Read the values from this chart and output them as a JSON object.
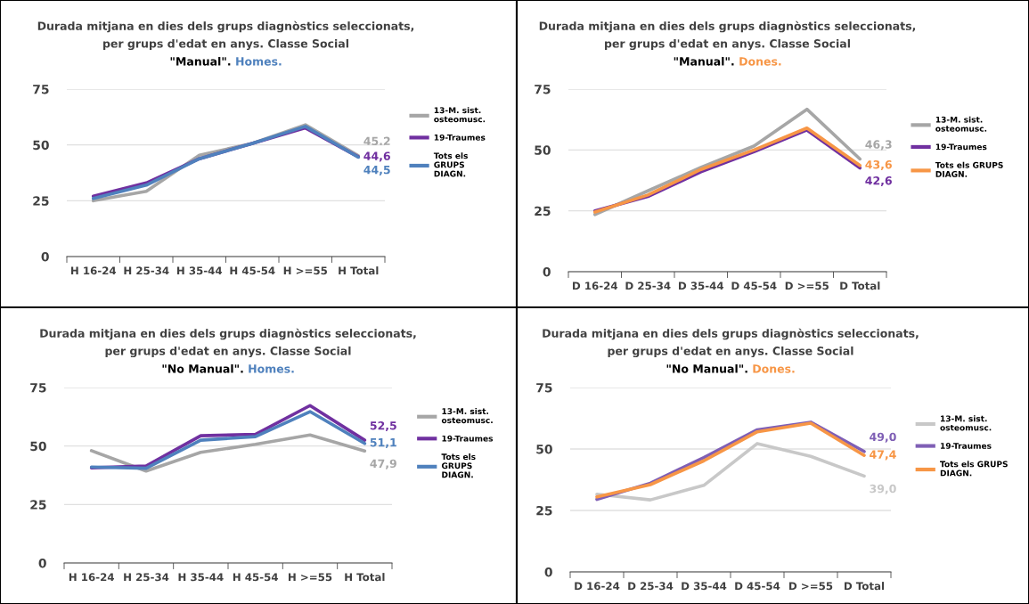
{
  "chart_data": [
    {
      "type": "line",
      "title": "Durada mitjana en dies dels grups diagnòstics seleccionats,\nper grups d'edat en anys. Classe Social\n\"Manual\".",
      "subtitle": "Homes.",
      "categories": [
        "H 16-24",
        "H 25-34",
        "H 35-44",
        "H 45-54",
        "H >=55",
        "H Total"
      ],
      "ylim": [
        0,
        75
      ],
      "yticks": [
        0,
        25,
        50,
        75
      ],
      "grid": "y",
      "legend": "right",
      "series": [
        {
          "name": "13-M. sist.\nosteomusc.",
          "color": "#a6a6a6",
          "values": [
            25.0,
            29.2,
            45.4,
            50.7,
            59.0,
            45.2
          ],
          "value_labels": [
            null,
            null,
            null,
            null,
            null,
            "45.2"
          ]
        },
        {
          "name": "19-Traumes",
          "color": "#7030a0",
          "values": [
            27.0,
            33.0,
            43.8,
            50.7,
            57.6,
            44.6
          ],
          "value_labels": [
            null,
            null,
            null,
            null,
            null,
            "44,6"
          ]
        },
        {
          "name": "Tots els\nGRUPS\nDIAGN.",
          "color": "#4f81bd",
          "values": [
            26.0,
            32.0,
            43.8,
            50.7,
            58.3,
            44.5
          ],
          "value_labels": [
            null,
            null,
            null,
            null,
            null,
            "44,5"
          ]
        }
      ]
    },
    {
      "type": "line",
      "title": "Durada mitjana en dies dels grups diagnòstics seleccionats,\nper grups d'edat en anys. Classe Social\n\"Manual\".",
      "subtitle": "Dones.",
      "categories": [
        "D 16-24",
        "D 25-34",
        "D 35-44",
        "D 45-54",
        "D >=55",
        "D Total"
      ],
      "ylim": [
        0,
        75
      ],
      "yticks": [
        0,
        25,
        50,
        75
      ],
      "grid": "y",
      "legend": "right",
      "series": [
        {
          "name": "13-M. sist.\nosteomusc.",
          "color": "#a6a6a6",
          "values": [
            23.5,
            33.2,
            42.8,
            51.6,
            66.7,
            46.3
          ],
          "value_labels": [
            null,
            null,
            null,
            null,
            null,
            "46,3"
          ]
        },
        {
          "name": "19-Traumes",
          "color": "#7030a0",
          "values": [
            25.0,
            30.9,
            41.0,
            49.3,
            58.2,
            42.6
          ],
          "value_labels": [
            null,
            null,
            null,
            null,
            null,
            "42,6"
          ]
        },
        {
          "name": "Tots els GRUPS\nDIAGN.",
          "color": "#f79646",
          "values": [
            24.5,
            31.5,
            42.0,
            50.0,
            59.0,
            43.6
          ],
          "value_labels": [
            null,
            null,
            null,
            null,
            null,
            "43,6"
          ]
        }
      ]
    },
    {
      "type": "line",
      "title": "Durada mitjana en dies dels grups diagnòstics seleccionats,\nper grups d'edat en anys. Classe Social\n\"No Manual\".",
      "subtitle": "Homes.",
      "categories": [
        "H 16-24",
        "H 25-34",
        "H 35-44",
        "H 45-54",
        "H >=55",
        "H Total"
      ],
      "ylim": [
        0,
        75
      ],
      "yticks": [
        0,
        25,
        50,
        75
      ],
      "grid": "y",
      "legend": "right",
      "series": [
        {
          "name": "13-M. sist.\nosteomusc.",
          "color": "#a6a6a6",
          "values": [
            48.0,
            39.3,
            47.3,
            50.7,
            54.7,
            47.9
          ],
          "value_labels": [
            null,
            null,
            null,
            null,
            null,
            "47,9"
          ]
        },
        {
          "name": "19-Traumes",
          "color": "#7030a0",
          "values": [
            40.7,
            41.5,
            54.4,
            55.0,
            67.3,
            52.5
          ],
          "value_labels": [
            null,
            null,
            null,
            null,
            null,
            "52,5"
          ]
        },
        {
          "name": "Tots els\nGRUPS\nDIAGN.",
          "color": "#4f81bd",
          "values": [
            41.0,
            40.5,
            52.5,
            54.0,
            64.7,
            51.1
          ],
          "value_labels": [
            null,
            null,
            null,
            null,
            null,
            "51,1"
          ]
        }
      ]
    },
    {
      "type": "line",
      "title": "Durada mitjana en dies dels grups diagnòstics seleccionats,\nper grups d'edat en anys. Classe Social\n\"No Manual\".",
      "subtitle": "Dones.",
      "categories": [
        "D 16-24",
        "D 25-34",
        "D 35-44",
        "D 45-54",
        "D >=55",
        "D Total"
      ],
      "ylim": [
        0,
        75
      ],
      "yticks": [
        0,
        25,
        50,
        75
      ],
      "grid": "y",
      "legend": "right",
      "series": [
        {
          "name": "13-M. sist.\nosteomusc.",
          "color": "#c8c8c8",
          "values": [
            31.6,
            29.3,
            35.2,
            52.2,
            47.0,
            39.0
          ],
          "value_labels": [
            null,
            null,
            null,
            null,
            null,
            "39,0"
          ]
        },
        {
          "name": "19-Traumes",
          "color": "#7f5fb5",
          "values": [
            29.5,
            36.1,
            46.5,
            57.8,
            60.9,
            49.0
          ],
          "value_labels": [
            null,
            null,
            null,
            null,
            null,
            "49,0"
          ]
        },
        {
          "name": "Tots els GRUPS\nDIAGN.",
          "color": "#f79646",
          "values": [
            30.5,
            35.5,
            45.2,
            57.0,
            60.5,
            47.4
          ],
          "value_labels": [
            null,
            null,
            null,
            null,
            null,
            "47,4"
          ]
        }
      ]
    }
  ]
}
